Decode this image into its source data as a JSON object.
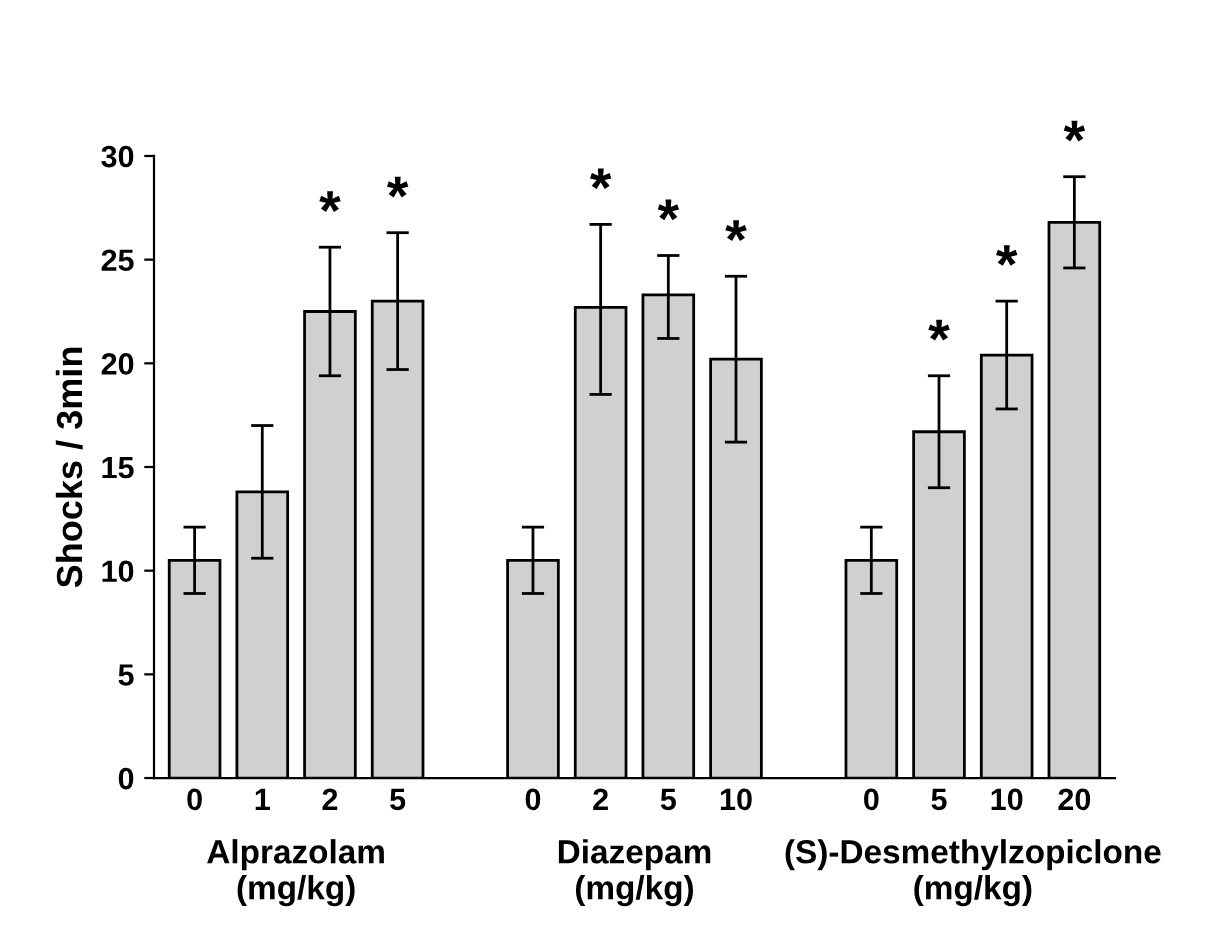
{
  "chart_data": {
    "type": "bar",
    "ylabel": "Shocks / 3min",
    "categories": [
      "0",
      "1",
      "2",
      "5",
      null,
      "0",
      "2",
      "5",
      "10",
      null,
      "0",
      "5",
      "10",
      "20"
    ],
    "values": [
      10.5,
      13.8,
      22.5,
      23.0,
      null,
      10.5,
      22.7,
      23.3,
      20.2,
      null,
      10.5,
      16.7,
      20.4,
      26.8
    ],
    "errors": [
      [
        8.9,
        12.1
      ],
      [
        10.6,
        17.0
      ],
      [
        19.4,
        25.6
      ],
      [
        19.7,
        26.3
      ],
      null,
      [
        8.9,
        12.1
      ],
      [
        18.5,
        26.7
      ],
      [
        21.2,
        25.2
      ],
      [
        16.2,
        24.2
      ],
      null,
      [
        8.9,
        12.1
      ],
      [
        14.0,
        19.4
      ],
      [
        17.8,
        23.0
      ],
      [
        24.6,
        29.0
      ]
    ],
    "value_labels": [
      null,
      null,
      "*",
      "*",
      null,
      null,
      "*",
      "*",
      "*",
      null,
      null,
      "*",
      "*",
      "*"
    ],
    "color": "#d0d0d0",
    "annotations": [
      "Alprazolam\n(mg/kg)",
      "Diazepam\n(mg/kg)",
      "(S)-Desmethylzopiclone\n(mg/kg)"
    ],
    "ylim": [
      0,
      30
    ],
    "yticks": [
      0,
      5,
      10,
      15,
      20,
      25,
      30
    ],
    "grid": false
  }
}
